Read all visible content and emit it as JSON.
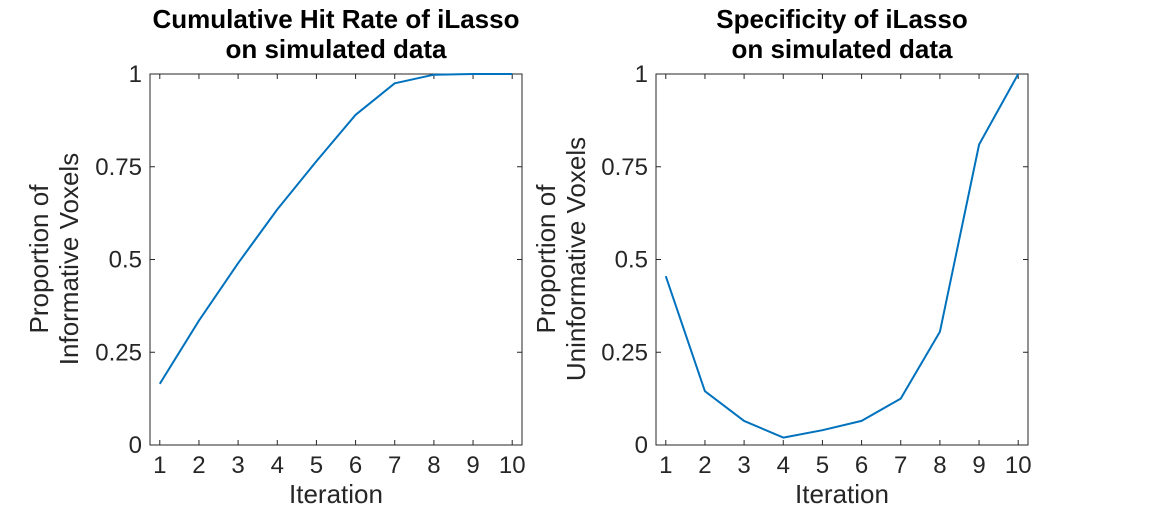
{
  "colors": {
    "line": "#0072BD",
    "axis": "#262626",
    "background": "#ffffff"
  },
  "chart_data": [
    {
      "type": "line",
      "title": [
        "Cumulative Hit Rate of iLasso",
        "on simulated data"
      ],
      "xlabel": "Iteration",
      "ylabel": [
        "Proportion of",
        "Informative Voxels"
      ],
      "xlim": [
        0.75,
        10.25
      ],
      "ylim": [
        0,
        1
      ],
      "xticks": [
        1,
        2,
        3,
        4,
        5,
        6,
        7,
        8,
        9,
        10
      ],
      "xtick_labels": [
        "1",
        "2",
        "3",
        "4",
        "5",
        "6",
        "7",
        "8",
        "9",
        "10"
      ],
      "yticks": [
        0,
        0.25,
        0.5,
        0.75,
        1
      ],
      "ytick_labels": [
        "0",
        "0.25",
        "0.5",
        "0.75",
        "1"
      ],
      "grid": false,
      "series": [
        {
          "x": [
            1,
            2,
            3,
            4,
            5,
            6,
            7,
            8,
            9,
            10
          ],
          "y": [
            0.165,
            0.335,
            0.49,
            0.635,
            0.765,
            0.89,
            0.975,
            0.998,
            1.0,
            1.0
          ]
        }
      ]
    },
    {
      "type": "line",
      "title": [
        "Specificity of iLasso",
        "on simulated data"
      ],
      "xlabel": "Iteration",
      "ylabel": [
        "Proportion of",
        "Uninformative Voxels"
      ],
      "xlim": [
        0.75,
        10.25
      ],
      "ylim": [
        0,
        1
      ],
      "xticks": [
        1,
        2,
        3,
        4,
        5,
        6,
        7,
        8,
        9,
        10
      ],
      "xtick_labels": [
        "1",
        "2",
        "3",
        "4",
        "5",
        "6",
        "7",
        "8",
        "9",
        "10"
      ],
      "yticks": [
        0,
        0.25,
        0.5,
        0.75,
        1
      ],
      "ytick_labels": [
        "0",
        "0.25",
        "0.5",
        "0.75",
        "1"
      ],
      "grid": false,
      "series": [
        {
          "x": [
            1,
            2,
            3,
            4,
            5,
            6,
            7,
            8,
            9,
            10
          ],
          "y": [
            0.455,
            0.145,
            0.065,
            0.02,
            0.04,
            0.065,
            0.125,
            0.305,
            0.81,
            1.0
          ]
        }
      ]
    }
  ]
}
